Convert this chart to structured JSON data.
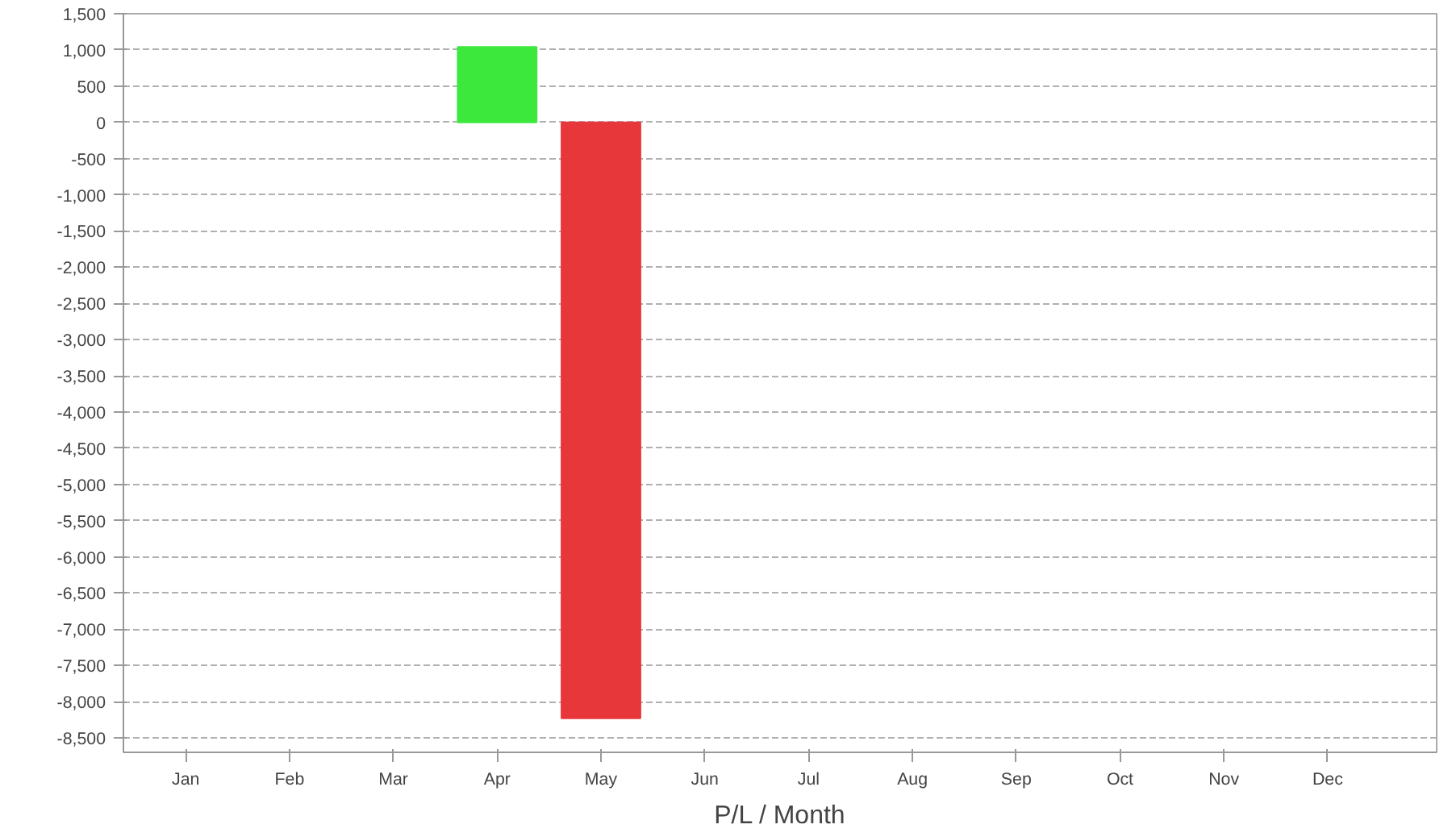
{
  "chart_data": {
    "type": "bar",
    "xlabel": "P/L / Month",
    "categories": [
      "Jan",
      "Feb",
      "Mar",
      "Apr",
      "May",
      "Jun",
      "Jul",
      "Aug",
      "Sep",
      "Oct",
      "Nov",
      "Dec"
    ],
    "values": [
      null,
      null,
      null,
      1040,
      -8230,
      null,
      null,
      null,
      null,
      null,
      null,
      null
    ],
    "colors": [
      "#3de83d",
      "#3de83d",
      "#3de83d",
      "#3de83d",
      "#e8373b",
      "#e8373b",
      "#e8373b",
      "#e8373b",
      "#e8373b",
      "#e8373b",
      "#e8373b",
      "#e8373b"
    ],
    "ylim": [
      -8700,
      1500
    ],
    "yticks": [
      {
        "value": -8500,
        "label": "-8,500"
      },
      {
        "value": -8000,
        "label": "-8,000"
      },
      {
        "value": -7500,
        "label": "-7,500"
      },
      {
        "value": -7000,
        "label": "-7,000"
      },
      {
        "value": -6500,
        "label": "-6,500"
      },
      {
        "value": -6000,
        "label": "-6,000"
      },
      {
        "value": -5500,
        "label": "-5,500"
      },
      {
        "value": -5000,
        "label": "-5,000"
      },
      {
        "value": -4500,
        "label": "-4,500"
      },
      {
        "value": -4000,
        "label": "-4,000"
      },
      {
        "value": -3500,
        "label": "-3,500"
      },
      {
        "value": -3000,
        "label": "-3,000"
      },
      {
        "value": -2500,
        "label": "-2,500"
      },
      {
        "value": -2000,
        "label": "-2,000"
      },
      {
        "value": -1500,
        "label": "-1,500"
      },
      {
        "value": -1000,
        "label": "-1,000"
      },
      {
        "value": -500,
        "label": "-500"
      },
      0,
      500,
      {
        "value": 1000,
        "label": "1,000"
      },
      {
        "value": 1500,
        "label": "1,500"
      }
    ],
    "grid": "y"
  }
}
